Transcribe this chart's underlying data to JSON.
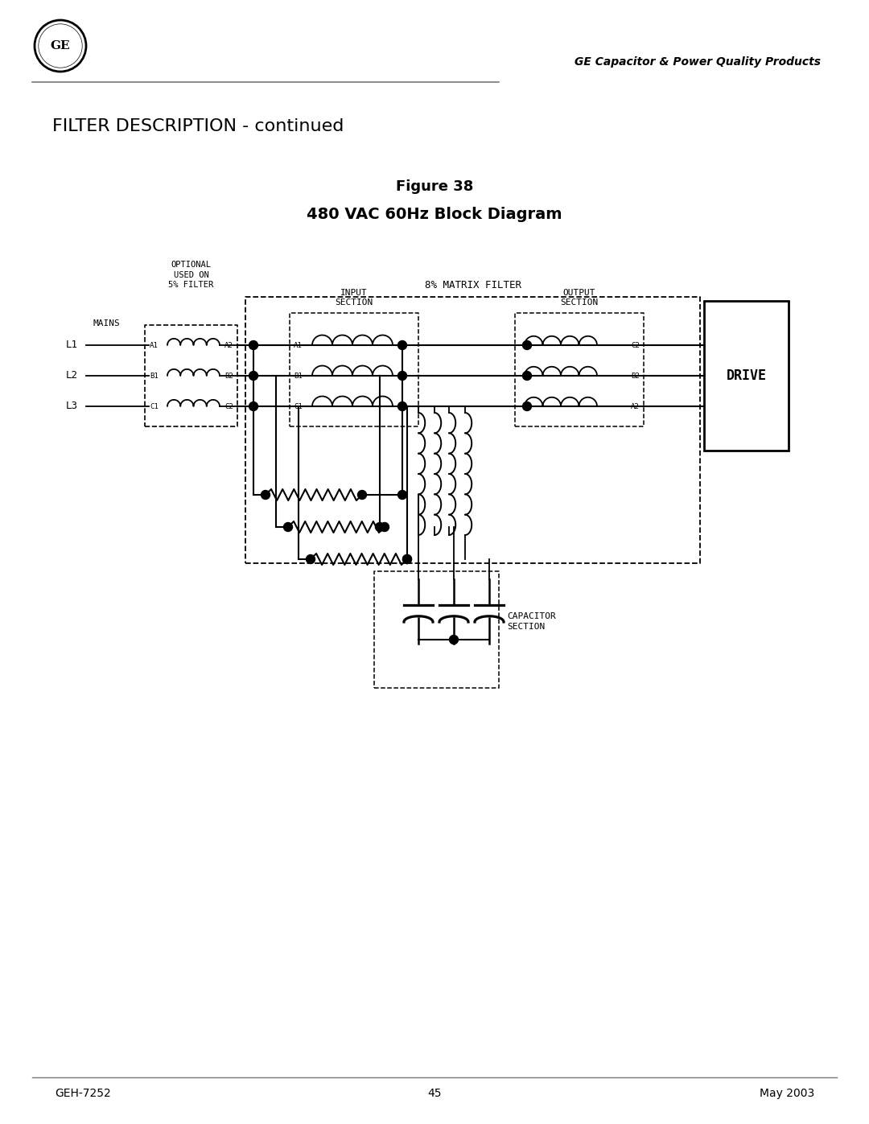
{
  "title_line1": "Figure 38",
  "title_line2": "480 VAC 60Hz Block Diagram",
  "section_title": "FILTER DESCRIPTION - continued",
  "header_text": "GE Capacitor & Power Quality Products",
  "matrix_filter_label": "8% MATRIX FILTER",
  "drive_label": "DRIVE",
  "mains_label": "MAINS",
  "line_labels": [
    "L1",
    "L2",
    "L3"
  ],
  "footer_left": "GEH-7252",
  "footer_center": "45",
  "footer_right": "May 2003",
  "bg_color": "#ffffff",
  "line_color": "#000000"
}
